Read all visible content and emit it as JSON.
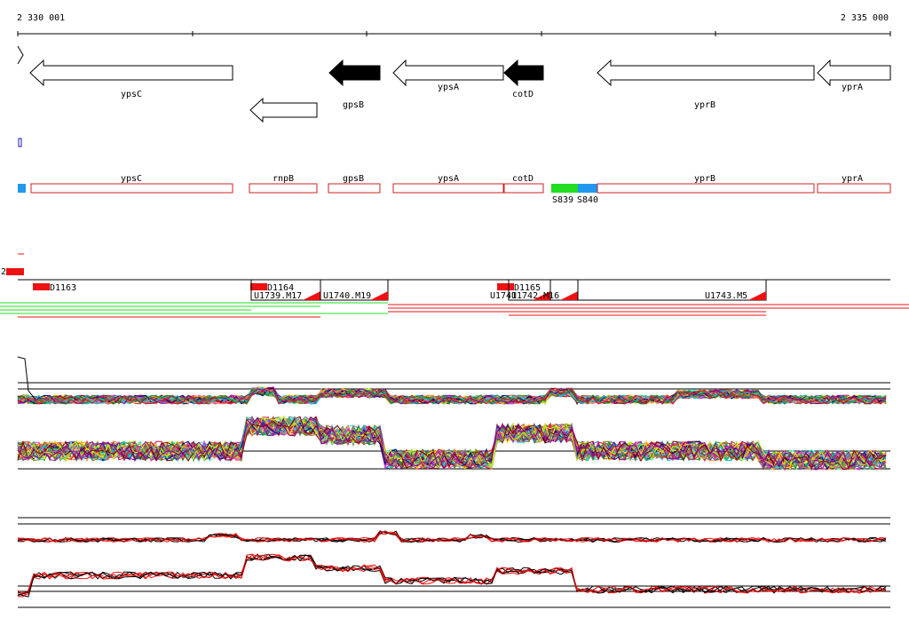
{
  "ruler": {
    "start_label": "2 330 001",
    "end_label": "2 335 000"
  },
  "colors": {
    "outline": "#cc2222",
    "black": "#000000",
    "navy": "#1a1aa8",
    "green": "#22dd22",
    "blue": "#2299ee",
    "red": "#ee1111"
  },
  "genes_strand": [
    {
      "label": "ypsC",
      "filled": false
    },
    {
      "label": "",
      "filled": false
    },
    {
      "label": "gpsB",
      "filled": true
    },
    {
      "label": "ypsA",
      "filled": false
    },
    {
      "label": "cotD",
      "filled": true
    },
    {
      "label": "yprB",
      "filled": false
    },
    {
      "label": "yprA",
      "filled": false
    }
  ],
  "annotation_boxes": [
    {
      "label": "ypsC"
    },
    {
      "label": "rnpB"
    },
    {
      "label": "gpsB"
    },
    {
      "label": "ypsA"
    },
    {
      "label": "cotD"
    },
    {
      "label": "yprB"
    },
    {
      "label": "yprA"
    }
  ],
  "sites": {
    "s1": "S839",
    "s2": "S840"
  },
  "track_marker": "2",
  "features": [
    {
      "label": "D1163"
    },
    {
      "label": "D1164"
    },
    {
      "label": "D1165"
    }
  ],
  "segments": [
    {
      "label": "U1739.M17"
    },
    {
      "label": "U1740.M19"
    },
    {
      "label": "U1741"
    },
    {
      "label": "U1742.M16"
    },
    {
      "label": "U1743.M5"
    }
  ],
  "profile_palette": [
    "#e6194b",
    "#3cb44b",
    "#ffe119",
    "#4363d8",
    "#f58231",
    "#911eb4",
    "#46f0f0",
    "#f032e6",
    "#bcf60c",
    "#008080",
    "#9a6324",
    "#800000",
    "#808000",
    "#000075",
    "#808080",
    "#ff7f50",
    "#00ced1",
    "#8b008b",
    "#228b22",
    "#dc143c"
  ],
  "summary_colors": [
    "#000000",
    "#ee1111"
  ]
}
